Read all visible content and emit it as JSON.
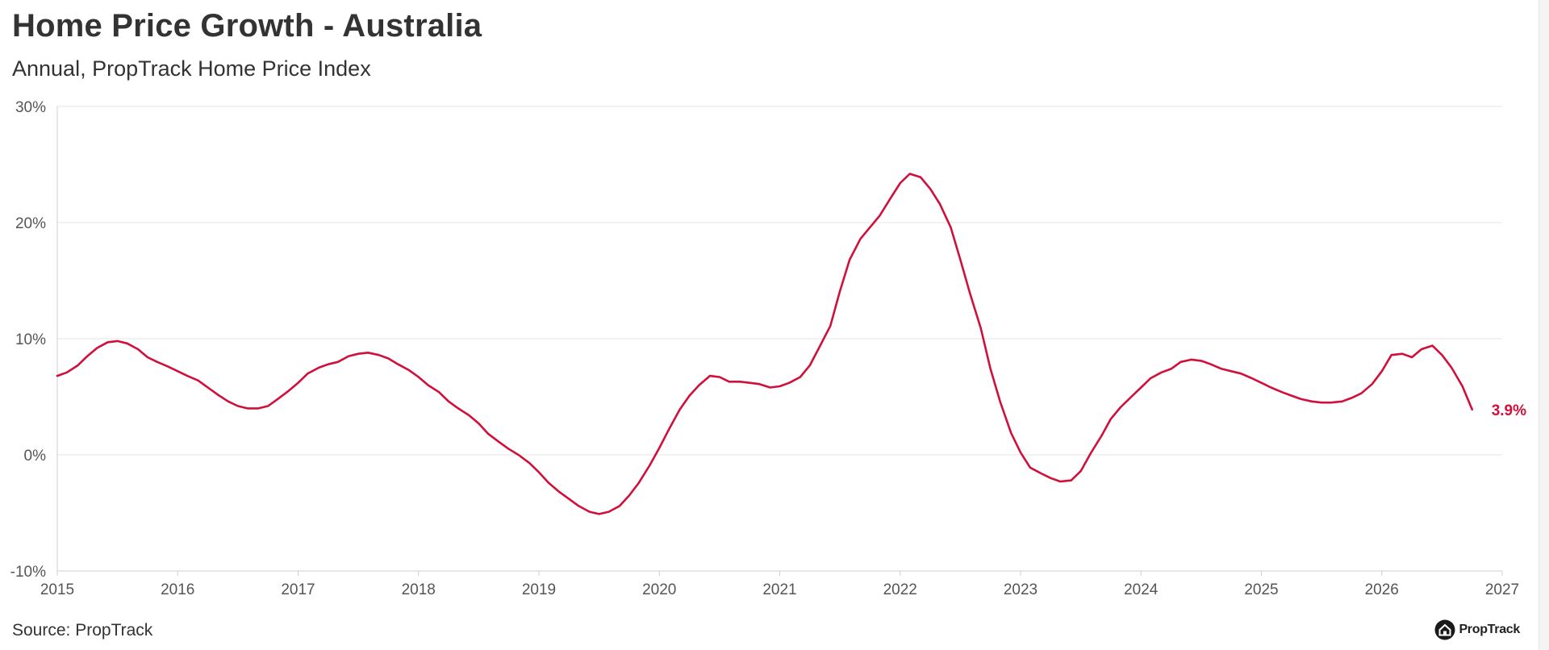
{
  "header": {
    "title": "Home Price Growth - Australia",
    "subtitle": "Annual, PropTrack Home Price Index"
  },
  "footer": {
    "source": "Source: PropTrack",
    "brand": "PropTrack"
  },
  "icons": {
    "brand": "house-logo-icon"
  },
  "colors": {
    "series": "#d0103a",
    "grid": "#e6e6e6",
    "text": "#333333"
  },
  "chart_data": {
    "type": "line",
    "title": "Home Price Growth - Australia",
    "subtitle": "Annual, PropTrack Home Price Index",
    "xlabel": "",
    "ylabel": "",
    "xlim": [
      2015,
      2027
    ],
    "ylim": [
      -10,
      30
    ],
    "x_ticks": [
      2015,
      2016,
      2017,
      2018,
      2019,
      2020,
      2021,
      2022,
      2023,
      2024,
      2025,
      2026,
      2027
    ],
    "y_ticks": [
      -10,
      0,
      10,
      20,
      30
    ],
    "y_tick_labels": [
      "-10%",
      "0%",
      "10%",
      "20%",
      "30%"
    ],
    "grid": "horizontal",
    "last_value_label": "3.9%",
    "series": [
      {
        "name": "",
        "color": "#d0103a",
        "points": [
          [
            2015.0,
            6.8
          ],
          [
            2015.08,
            7.1
          ],
          [
            2015.17,
            7.7
          ],
          [
            2015.25,
            8.5
          ],
          [
            2015.33,
            9.2
          ],
          [
            2015.42,
            9.7
          ],
          [
            2015.5,
            9.8
          ],
          [
            2015.58,
            9.6
          ],
          [
            2015.67,
            9.1
          ],
          [
            2015.75,
            8.4
          ],
          [
            2015.83,
            8.0
          ],
          [
            2015.92,
            7.6
          ],
          [
            2016.0,
            7.2
          ],
          [
            2016.08,
            6.8
          ],
          [
            2016.17,
            6.4
          ],
          [
            2016.25,
            5.8
          ],
          [
            2016.33,
            5.2
          ],
          [
            2016.42,
            4.6
          ],
          [
            2016.5,
            4.2
          ],
          [
            2016.58,
            4.0
          ],
          [
            2016.67,
            4.0
          ],
          [
            2016.75,
            4.2
          ],
          [
            2016.83,
            4.8
          ],
          [
            2016.92,
            5.5
          ],
          [
            2017.0,
            6.2
          ],
          [
            2017.08,
            7.0
          ],
          [
            2017.17,
            7.5
          ],
          [
            2017.25,
            7.8
          ],
          [
            2017.33,
            8.0
          ],
          [
            2017.42,
            8.5
          ],
          [
            2017.5,
            8.7
          ],
          [
            2017.58,
            8.8
          ],
          [
            2017.67,
            8.6
          ],
          [
            2017.75,
            8.3
          ],
          [
            2017.83,
            7.8
          ],
          [
            2017.92,
            7.3
          ],
          [
            2018.0,
            6.7
          ],
          [
            2018.08,
            6.0
          ],
          [
            2018.17,
            5.4
          ],
          [
            2018.25,
            4.6
          ],
          [
            2018.33,
            4.0
          ],
          [
            2018.42,
            3.4
          ],
          [
            2018.5,
            2.7
          ],
          [
            2018.58,
            1.8
          ],
          [
            2018.67,
            1.1
          ],
          [
            2018.75,
            0.5
          ],
          [
            2018.83,
            0.0
          ],
          [
            2018.92,
            -0.7
          ],
          [
            2019.0,
            -1.5
          ],
          [
            2019.08,
            -2.4
          ],
          [
            2019.17,
            -3.2
          ],
          [
            2019.25,
            -3.8
          ],
          [
            2019.33,
            -4.4
          ],
          [
            2019.42,
            -4.9
          ],
          [
            2019.5,
            -5.1
          ],
          [
            2019.58,
            -4.9
          ],
          [
            2019.67,
            -4.4
          ],
          [
            2019.75,
            -3.5
          ],
          [
            2019.83,
            -2.4
          ],
          [
            2019.92,
            -0.9
          ],
          [
            2020.0,
            0.6
          ],
          [
            2020.08,
            2.2
          ],
          [
            2020.17,
            3.9
          ],
          [
            2020.25,
            5.1
          ],
          [
            2020.33,
            6.0
          ],
          [
            2020.42,
            6.8
          ],
          [
            2020.5,
            6.7
          ],
          [
            2020.58,
            6.3
          ],
          [
            2020.67,
            6.3
          ],
          [
            2020.75,
            6.2
          ],
          [
            2020.83,
            6.1
          ],
          [
            2020.92,
            5.8
          ],
          [
            2021.0,
            5.9
          ],
          [
            2021.08,
            6.2
          ],
          [
            2021.17,
            6.7
          ],
          [
            2021.25,
            7.7
          ],
          [
            2021.33,
            9.3
          ],
          [
            2021.42,
            11.1
          ],
          [
            2021.5,
            14.1
          ],
          [
            2021.58,
            16.8
          ],
          [
            2021.67,
            18.6
          ],
          [
            2021.75,
            19.6
          ],
          [
            2021.83,
            20.6
          ],
          [
            2021.92,
            22.1
          ],
          [
            2022.0,
            23.4
          ],
          [
            2022.08,
            24.2
          ],
          [
            2022.17,
            23.9
          ],
          [
            2022.25,
            22.9
          ],
          [
            2022.33,
            21.6
          ],
          [
            2022.42,
            19.6
          ],
          [
            2022.5,
            16.8
          ],
          [
            2022.58,
            13.9
          ],
          [
            2022.67,
            10.9
          ],
          [
            2022.75,
            7.4
          ],
          [
            2022.83,
            4.6
          ],
          [
            2022.92,
            1.9
          ],
          [
            2023.0,
            0.2
          ],
          [
            2023.08,
            -1.1
          ],
          [
            2023.17,
            -1.6
          ],
          [
            2023.25,
            -2.0
          ],
          [
            2023.33,
            -2.3
          ],
          [
            2023.42,
            -2.2
          ],
          [
            2023.5,
            -1.4
          ],
          [
            2023.58,
            0.1
          ],
          [
            2023.67,
            1.6
          ],
          [
            2023.75,
            3.1
          ],
          [
            2023.83,
            4.1
          ],
          [
            2023.92,
            5.0
          ],
          [
            2024.0,
            5.8
          ],
          [
            2024.08,
            6.6
          ],
          [
            2024.17,
            7.1
          ],
          [
            2024.25,
            7.4
          ],
          [
            2024.33,
            8.0
          ],
          [
            2024.42,
            8.2
          ],
          [
            2024.5,
            8.1
          ],
          [
            2024.58,
            7.8
          ],
          [
            2024.67,
            7.4
          ],
          [
            2024.75,
            7.2
          ],
          [
            2024.83,
            7.0
          ],
          [
            2024.92,
            6.6
          ],
          [
            2025.0,
            6.2
          ],
          [
            2025.08,
            5.8
          ],
          [
            2025.17,
            5.4
          ],
          [
            2025.25,
            5.1
          ],
          [
            2025.33,
            4.8
          ],
          [
            2025.42,
            4.6
          ],
          [
            2025.5,
            4.5
          ],
          [
            2025.58,
            4.5
          ],
          [
            2025.67,
            4.6
          ],
          [
            2025.75,
            4.9
          ],
          [
            2025.83,
            5.3
          ],
          [
            2025.92,
            6.1
          ],
          [
            2026.0,
            7.2
          ],
          [
            2026.08,
            8.6
          ],
          [
            2026.17,
            8.7
          ],
          [
            2026.25,
            8.4
          ],
          [
            2026.33,
            9.1
          ],
          [
            2026.42,
            9.4
          ],
          [
            2026.5,
            8.6
          ],
          [
            2026.58,
            7.5
          ],
          [
            2026.67,
            5.9
          ],
          [
            2026.75,
            3.9
          ]
        ]
      }
    ]
  }
}
